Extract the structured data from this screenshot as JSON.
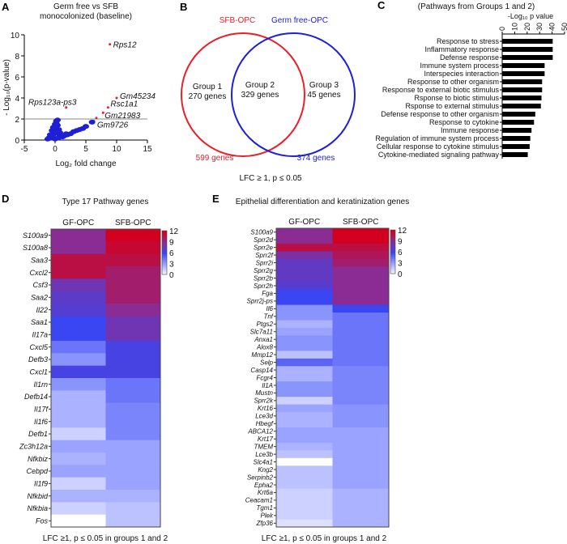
{
  "colors": {
    "red": "#e8202a",
    "blue": "#1f1fd6",
    "scale": [
      "#ffffff",
      "#9aa3ff",
      "#3a46f2",
      "#8a2c93",
      "#d2001e"
    ]
  },
  "chart_data": [
    {
      "panel": "A",
      "type": "scatter",
      "title_line1": "Germ free  vs SFB",
      "title_line2": "monocolonized (baseline)",
      "xlabel": "Log₂ fold change",
      "ylabel": "- Log₁₀(p-value)",
      "xlim": [
        -5,
        15
      ],
      "ylim": [
        0,
        10
      ],
      "xticks": [
        -5,
        0,
        5,
        10,
        15
      ],
      "yticks": [
        0,
        2,
        4,
        6,
        8,
        10
      ],
      "threshold_y": 2,
      "labeled_points": [
        {
          "label": "Rps12",
          "x": 8.9,
          "y": 9.1
        },
        {
          "label": "Gm45234",
          "x": 10.0,
          "y": 4.0
        },
        {
          "label": "Rps123a-ps3",
          "x": 1.8,
          "y": 3.1
        },
        {
          "label": "Rsc1a1",
          "x": 8.6,
          "y": 3.1
        },
        {
          "label": "Gm21983",
          "x": 7.8,
          "y": 2.6
        },
        {
          "label": "Gm9726",
          "x": 6.3,
          "y": 1.8
        }
      ],
      "other_red_points": [
        {
          "x": 6.7,
          "y": 2.1
        }
      ],
      "blue_points": [
        [
          -1,
          0.2
        ],
        [
          -0.8,
          0.5
        ],
        [
          -0.5,
          0.9
        ],
        [
          -0.3,
          1.2
        ],
        [
          0,
          1.5
        ],
        [
          0.2,
          1.8
        ],
        [
          0.4,
          1.4
        ],
        [
          0.6,
          1.0
        ],
        [
          0.8,
          0.7
        ],
        [
          1,
          0.4
        ],
        [
          -0.6,
          0.2
        ],
        [
          0,
          0.1
        ],
        [
          0.5,
          0.2
        ],
        [
          1.2,
          0.3
        ],
        [
          -0.2,
          0.6
        ],
        [
          0.3,
          0.8
        ],
        [
          0.1,
          1.1
        ],
        [
          -0.4,
          0.4
        ],
        [
          0.7,
          0.5
        ],
        [
          1.5,
          0.4
        ],
        [
          2,
          0.5
        ],
        [
          2.5,
          0.6
        ],
        [
          3,
          0.8
        ],
        [
          3.5,
          0.9
        ],
        [
          4,
          1.0
        ],
        [
          4.5,
          1.1
        ],
        [
          5,
          1.3
        ],
        [
          6,
          1.7
        ],
        [
          1.8,
          0.6
        ],
        [
          -1.2,
          0.1
        ],
        [
          0.2,
          1.6
        ],
        [
          0.4,
          1.9
        ]
      ]
    },
    {
      "panel": "B",
      "type": "venn",
      "sets": [
        {
          "name": "SFB-OPC",
          "total": "599 genes",
          "color": "#e8202a"
        },
        {
          "name": "Germ free-OPC",
          "total": "374 genes",
          "color": "#1f1fd6"
        }
      ],
      "regions": [
        {
          "name": "Group 1",
          "count": "270 genes"
        },
        {
          "name": "Group 2",
          "count": "329 genes"
        },
        {
          "name": "Group 3",
          "count": "45 genes"
        }
      ],
      "caption": "LFC ≥ 1, p ≤ 0.05"
    },
    {
      "panel": "C",
      "type": "bar",
      "orientation": "horizontal",
      "title": "(Pathways from Groups 1 and 2)",
      "xlabel": "-Log₁₀ p value",
      "xlim": [
        0,
        50
      ],
      "xticks": [
        0,
        10,
        20,
        30,
        40,
        50
      ],
      "categories": [
        "Response to stress",
        "Inflammatory response",
        "Defense response",
        "Immune system process",
        "Interspecies interaction",
        "Response to other organism",
        "Response to external biotic stimulus",
        "Rsponse to biotic stimulus",
        "Rsponse to external stimulus",
        "Defense response to other organism",
        "Response to cytokine",
        "Immune response",
        "Regulation of immune system process",
        "Cellular response to cytokine stimulus",
        "Cytokine-mediated signaling pathway"
      ],
      "values": [
        40.5,
        40.5,
        40.5,
        34,
        34,
        32,
        32,
        31.5,
        31,
        26.5,
        25.5,
        23.5,
        22.5,
        22,
        20.5
      ]
    },
    {
      "panel": "D",
      "type": "heatmap",
      "title": "Type 17 Pathway genes",
      "columns": [
        "GF-OPC",
        "SFB-OPC"
      ],
      "colorbar_ticks": [
        12,
        9,
        6,
        3,
        0
      ],
      "range": [
        0,
        12
      ],
      "caption": "LFC ≥1, p ≤ 0.05 in groups 1 and 2",
      "rows": [
        "S100a9",
        "S100a8",
        "Saa3",
        "Cxcl2",
        "Csf3",
        "Saa2",
        "Il22",
        "Saa1",
        "Il17a",
        "Cxcl5",
        "Defb3",
        "Cxcl1",
        "Il1rn",
        "Defb14",
        "Il17f",
        "Il1f6",
        "Defb1",
        "Zc3h12a",
        "Nfkbiz",
        "Cebpd",
        "Il1f9",
        "Nfkbid",
        "Nfkbia",
        "Fos"
      ],
      "values": [
        [
          9,
          12
        ],
        [
          9,
          11.5
        ],
        [
          11,
          11
        ],
        [
          11,
          10
        ],
        [
          8,
          10
        ],
        [
          7.3,
          10
        ],
        [
          7,
          9
        ],
        [
          6,
          8
        ],
        [
          6,
          8
        ],
        [
          4.5,
          6.5
        ],
        [
          3.5,
          6.5
        ],
        [
          6.5,
          6.5
        ],
        [
          3.5,
          4.5
        ],
        [
          2.5,
          4.5
        ],
        [
          2.5,
          4
        ],
        [
          2.5,
          4
        ],
        [
          1.5,
          4
        ],
        [
          3,
          3
        ],
        [
          2.5,
          3
        ],
        [
          3,
          3
        ],
        [
          1.5,
          3
        ],
        [
          2.5,
          2.5
        ],
        [
          1.5,
          2
        ],
        [
          0,
          2
        ]
      ]
    },
    {
      "panel": "E",
      "type": "heatmap",
      "title": "Epithelial differentiation and keratinization genes",
      "columns": [
        "GF-OPC",
        "SFB-OPC"
      ],
      "colorbar_ticks": [
        12,
        9,
        6,
        3,
        0
      ],
      "range": [
        0,
        12
      ],
      "caption": "LFC ≥1, p ≤ 0.05 in groups 1 and 2",
      "rows": [
        "S100a9",
        "Sprr2d",
        "Sprr2e",
        "Sprr2f",
        "Sprr2i",
        "Sprr2g",
        "Sprr2b",
        "Sprr2h",
        "Fga",
        "Sprr2j-ps",
        "Il6",
        "Tnf",
        "Ptgs2",
        "Slc7a11",
        "Anxa1",
        "Alox8",
        "Mmp12",
        "Selp",
        "Casp14",
        "Fcgr4",
        "Il1A",
        "Mustn",
        "Sprr2k",
        "Krt16",
        "Lce3d",
        "Hbegf",
        "ABCA12",
        "Krt17",
        "TMEM",
        "Lce3b",
        "Slc4a1",
        "Kng2",
        "Serpinb2",
        "Epha2",
        "Krt6a",
        "Ceacam1",
        "Tgm1",
        "Plek",
        "Zfp36"
      ],
      "values": [
        [
          9,
          12
        ],
        [
          9,
          12
        ],
        [
          11,
          11
        ],
        [
          8.5,
          10.5
        ],
        [
          7.5,
          10
        ],
        [
          7.5,
          9
        ],
        [
          7.5,
          9
        ],
        [
          7,
          9
        ],
        [
          6,
          9
        ],
        [
          6,
          9
        ],
        [
          3.5,
          6
        ],
        [
          3.5,
          4.5
        ],
        [
          2.5,
          4.5
        ],
        [
          3,
          4.5
        ],
        [
          3.5,
          4.5
        ],
        [
          3.5,
          4.5
        ],
        [
          2,
          4.5
        ],
        [
          5,
          4.5
        ],
        [
          2.5,
          4
        ],
        [
          2.5,
          4
        ],
        [
          3.5,
          4
        ],
        [
          3.5,
          4
        ],
        [
          1.5,
          4
        ],
        [
          3,
          3.5
        ],
        [
          2.5,
          3.5
        ],
        [
          2.5,
          3.5
        ],
        [
          3,
          3
        ],
        [
          3,
          3
        ],
        [
          2.5,
          3
        ],
        [
          2,
          3
        ],
        [
          0,
          3
        ],
        [
          2,
          3
        ],
        [
          2,
          3
        ],
        [
          2,
          3
        ],
        [
          1.5,
          2.5
        ],
        [
          1.5,
          2.5
        ],
        [
          1.5,
          2.5
        ],
        [
          1.5,
          2.5
        ],
        [
          1,
          2.5
        ]
      ]
    }
  ],
  "panel_letters": [
    "A",
    "B",
    "C",
    "D",
    "E"
  ]
}
